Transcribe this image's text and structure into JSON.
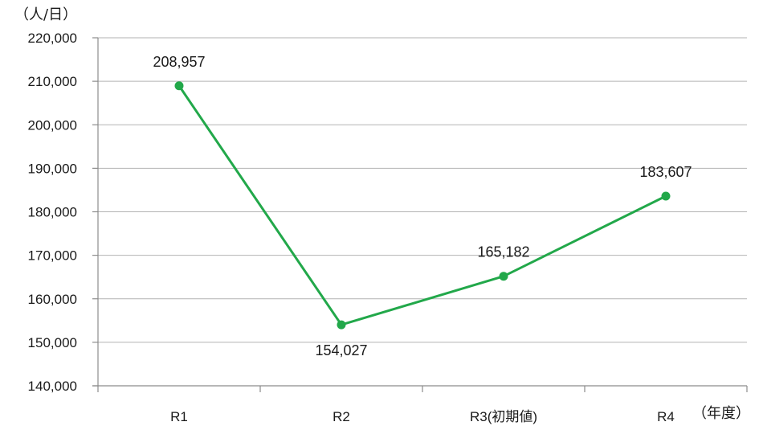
{
  "chart_data": {
    "type": "line",
    "categories": [
      "R1",
      "R2",
      "R3(初期値)",
      "R4"
    ],
    "series": [
      {
        "values": [
          208957,
          154027,
          165182,
          183607
        ],
        "data_labels": [
          "208,957",
          "154,027",
          "165,182",
          "183,607"
        ]
      }
    ],
    "y_ticks": [
      "140,000",
      "150,000",
      "160,000",
      "170,000",
      "180,000",
      "190,000",
      "200,000",
      "210,000",
      "220,000"
    ],
    "ylim": [
      140000,
      220000
    ],
    "y_unit": "（人/日）",
    "x_unit": "（年度）",
    "grid": true,
    "colors": {
      "line": "#22a84a",
      "grid": "#b3b3b3",
      "axis": "#8c8c8c"
    }
  }
}
